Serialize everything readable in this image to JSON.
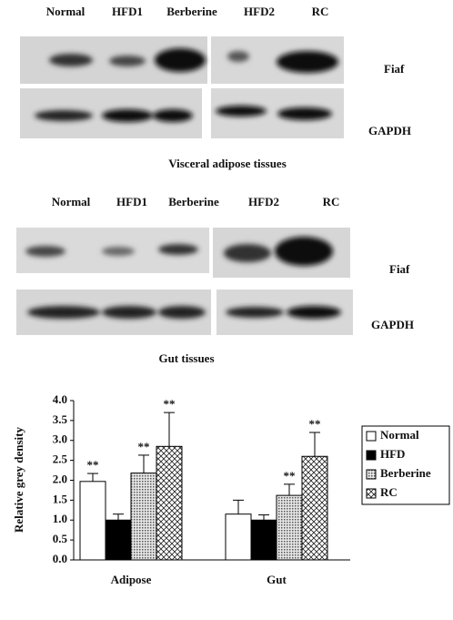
{
  "blots": [
    {
      "lanes": [
        "Normal",
        "HFD1",
        "Berberine",
        "HFD2",
        "RC"
      ],
      "rows": [
        "Fiaf",
        "GAPDH"
      ],
      "caption": "Visceral adipose tissues"
    },
    {
      "lanes": [
        "Normal",
        "HFD1",
        "Berberine",
        "HFD2",
        "RC"
      ],
      "rows": [
        "Fiaf",
        "GAPDH"
      ],
      "caption": "Gut tissues"
    }
  ],
  "chart_data": {
    "type": "bar",
    "y_label": "Relative grey density",
    "categories": [
      "Adipose",
      "Gut"
    ],
    "series": [
      {
        "name": "Normal",
        "color": "#ffffff",
        "values": [
          1.97,
          1.15
        ],
        "errors": [
          0.2,
          0.35
        ],
        "significance": [
          "**",
          null
        ]
      },
      {
        "name": "HFD",
        "color": "#000000",
        "values": [
          1.0,
          1.0
        ],
        "errors": [
          0.15,
          0.13
        ],
        "significance": [
          null,
          null
        ]
      },
      {
        "name": "Berberine",
        "color": "#b8b8b8",
        "pattern": "dots",
        "values": [
          2.18,
          1.62
        ],
        "errors": [
          0.45,
          0.28
        ],
        "significance": [
          "**",
          "**"
        ]
      },
      {
        "name": "RC",
        "color": "#ffffff",
        "pattern": "crosshatch",
        "values": [
          2.85,
          2.6
        ],
        "errors": [
          0.85,
          0.6
        ],
        "significance": [
          "**",
          "**"
        ]
      }
    ],
    "ylim": [
      0,
      4
    ],
    "yticks": [
      {
        "value": 0,
        "label": "0.0"
      },
      {
        "value": 0.5,
        "label": "0.5"
      },
      {
        "value": 1,
        "label": "1.0"
      },
      {
        "value": 1.5,
        "label": "1.5"
      },
      {
        "value": 2,
        "label": "2.0"
      },
      {
        "value": 2.5,
        "label": "2.5"
      },
      {
        "value": 3,
        "label": "3.0"
      },
      {
        "value": 3.5,
        "label": "3.5"
      },
      {
        "value": 4,
        "label": "4.0"
      }
    ],
    "legend": "right"
  }
}
